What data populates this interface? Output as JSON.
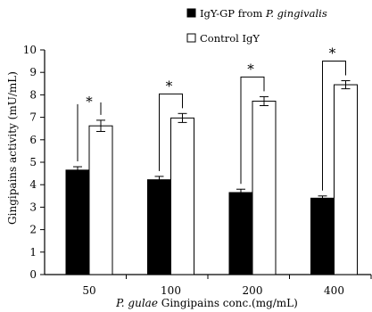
{
  "chart_data": {
    "type": "bar",
    "categories": [
      "50",
      "100",
      "200",
      "400"
    ],
    "series": [
      {
        "name": "IgY-GP from P. gingivalis",
        "legend_prefix": "IgY-GP from ",
        "legend_italic": "P. gingivalis",
        "color": "#000000",
        "values": [
          4.65,
          4.22,
          3.65,
          3.4
        ],
        "errors": [
          0.15,
          0.15,
          0.15,
          0.1
        ]
      },
      {
        "name": "Control IgY",
        "legend_prefix": "Control IgY",
        "legend_italic": "",
        "color": "#ffffff",
        "values": [
          6.62,
          6.97,
          7.72,
          8.45
        ],
        "errors": [
          0.25,
          0.2,
          0.2,
          0.18
        ]
      }
    ],
    "ylabel": "Gingipains activity (mU/mL)",
    "xlabel_italic": "P. gulae",
    "xlabel_rest": " Gingipains conc.(mg/mL)",
    "ylim": [
      0,
      10
    ],
    "yticks": [
      "0",
      "1",
      "2",
      "3",
      "4",
      "5",
      "6",
      "7",
      "8",
      "9",
      "10"
    ],
    "significance": [
      "*",
      "*",
      "*",
      "*"
    ],
    "legend_position": "top-right",
    "grid": false
  }
}
